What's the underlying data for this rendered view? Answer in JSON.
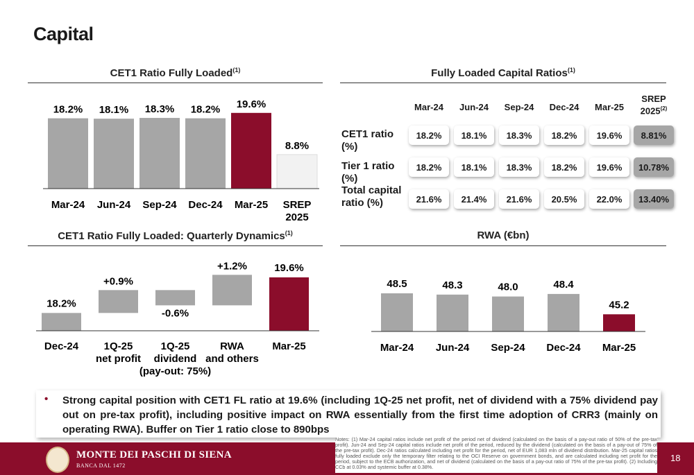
{
  "page": {
    "title": "Capital",
    "page_number": "18"
  },
  "chart_data": [
    {
      "type": "bar",
      "title": "CET1 Ratio Fully Loaded",
      "title_note": "(1)",
      "categories": [
        "Mar-24",
        "Jun-24",
        "Sep-24",
        "Dec-24",
        "Mar-25",
        "SREP 2025"
      ],
      "values": [
        18.2,
        18.1,
        18.3,
        18.2,
        19.6,
        8.8
      ],
      "value_labels": [
        "18.2%",
        "18.1%",
        "18.3%",
        "18.2%",
        "19.6%",
        "8.8%"
      ],
      "colors": [
        "#a6a6a6",
        "#a6a6a6",
        "#a6a6a6",
        "#a6a6a6",
        "#8b0d2b",
        "#f2f2f2"
      ],
      "ylim": [
        0,
        21
      ]
    },
    {
      "type": "bar",
      "title": "CET1 Ratio Fully Loaded: Quarterly Dynamics",
      "title_note": "(1)",
      "categories": [
        "Dec-24",
        "1Q-25 net profit",
        "1Q-25 dividend (pay-out: 75%)",
        "RWA and others",
        "Mar-25"
      ],
      "category_lines": [
        [
          "Dec-24"
        ],
        [
          "1Q-25",
          "net profit"
        ],
        [
          "1Q-25",
          "dividend",
          "(pay-out: 75%)"
        ],
        [
          "RWA",
          "and others"
        ],
        [
          "Mar-25"
        ]
      ],
      "values": [
        18.2,
        0.9,
        -0.6,
        1.2,
        19.6
      ],
      "value_labels": [
        "18.2%",
        "+0.9%",
        "-0.6%",
        "+1.2%",
        "19.6%"
      ],
      "kinds": [
        "total",
        "delta",
        "delta",
        "delta",
        "total"
      ],
      "colors": [
        "#a6a6a6",
        "#a6a6a6",
        "#a6a6a6",
        "#a6a6a6",
        "#8b0d2b"
      ]
    },
    {
      "type": "bar",
      "title": "RWA (€bn)",
      "categories": [
        "Mar-24",
        "Jun-24",
        "Sep-24",
        "Dec-24",
        "Mar-25"
      ],
      "values": [
        48.5,
        48.3,
        48.0,
        48.4,
        45.2
      ],
      "value_labels": [
        "48.5",
        "48.3",
        "48.0",
        "48.4",
        "45.2"
      ],
      "colors": [
        "#a6a6a6",
        "#a6a6a6",
        "#a6a6a6",
        "#a6a6a6",
        "#8b0d2b"
      ]
    },
    {
      "type": "table",
      "title": "Fully Loaded Capital Ratios",
      "title_note": "(1)",
      "columns": [
        "Mar-24",
        "Jun-24",
        "Sep-24",
        "Dec-24",
        "Mar-25",
        "SREP 2025"
      ],
      "srep_note": "(2)",
      "rows": [
        {
          "label": "CET1 ratio (%)",
          "values": [
            "18.2%",
            "18.1%",
            "18.3%",
            "18.2%",
            "19.6%",
            "8.81%"
          ]
        },
        {
          "label": "Tier 1 ratio (%)",
          "values": [
            "18.2%",
            "18.1%",
            "18.3%",
            "18.2%",
            "19.6%",
            "10.78%"
          ]
        },
        {
          "label": "Total capital ratio (%)",
          "values": [
            "21.6%",
            "21.4%",
            "21.6%",
            "20.5%",
            "22.0%",
            "13.40%"
          ]
        }
      ]
    }
  ],
  "bullet": "Strong capital position with CET1 FL ratio at 19.6% (including 1Q-25 net profit, net of dividend with a 75% dividend pay out on pre-tax profit), including positive impact on RWA essentially from the first time adoption of CRR3 (mainly on operating RWA). Buffer on Tier 1 ratio close to 890bps",
  "notes": "Notes: (1) Mar-24 capital ratios include net profit of the period net of dividend (calculated on the basis of a pay-out ratio of 50% of the pre-tax profit). Jun-24 and Sep-24 capital ratios include net profit of the period, reduced by the dividend (calculated on the basis of a pay-out of 75% of the pre-tax profit). Dec-24 ratios calculated including net profit for the period, net of EUR 1,083 mln of dividend distribution. Mar-25 capital ratios fully loaded exclude only the temporary filter relating to the OCI Reserve on government bonds, and are calculated including net profit for the period, subject to the ECB authorization, and net of dividend (calculated on the basis of a pay-out ratio of 75% of the pre-tax profit). (2) Including CCb at 0.03% and systemic buffer at 0.38%.",
  "brand": {
    "name": "MONTE DEI PASCHI DI SIENA",
    "sub": "BANCA DAL 1472",
    "color": "#8b0d2b"
  }
}
